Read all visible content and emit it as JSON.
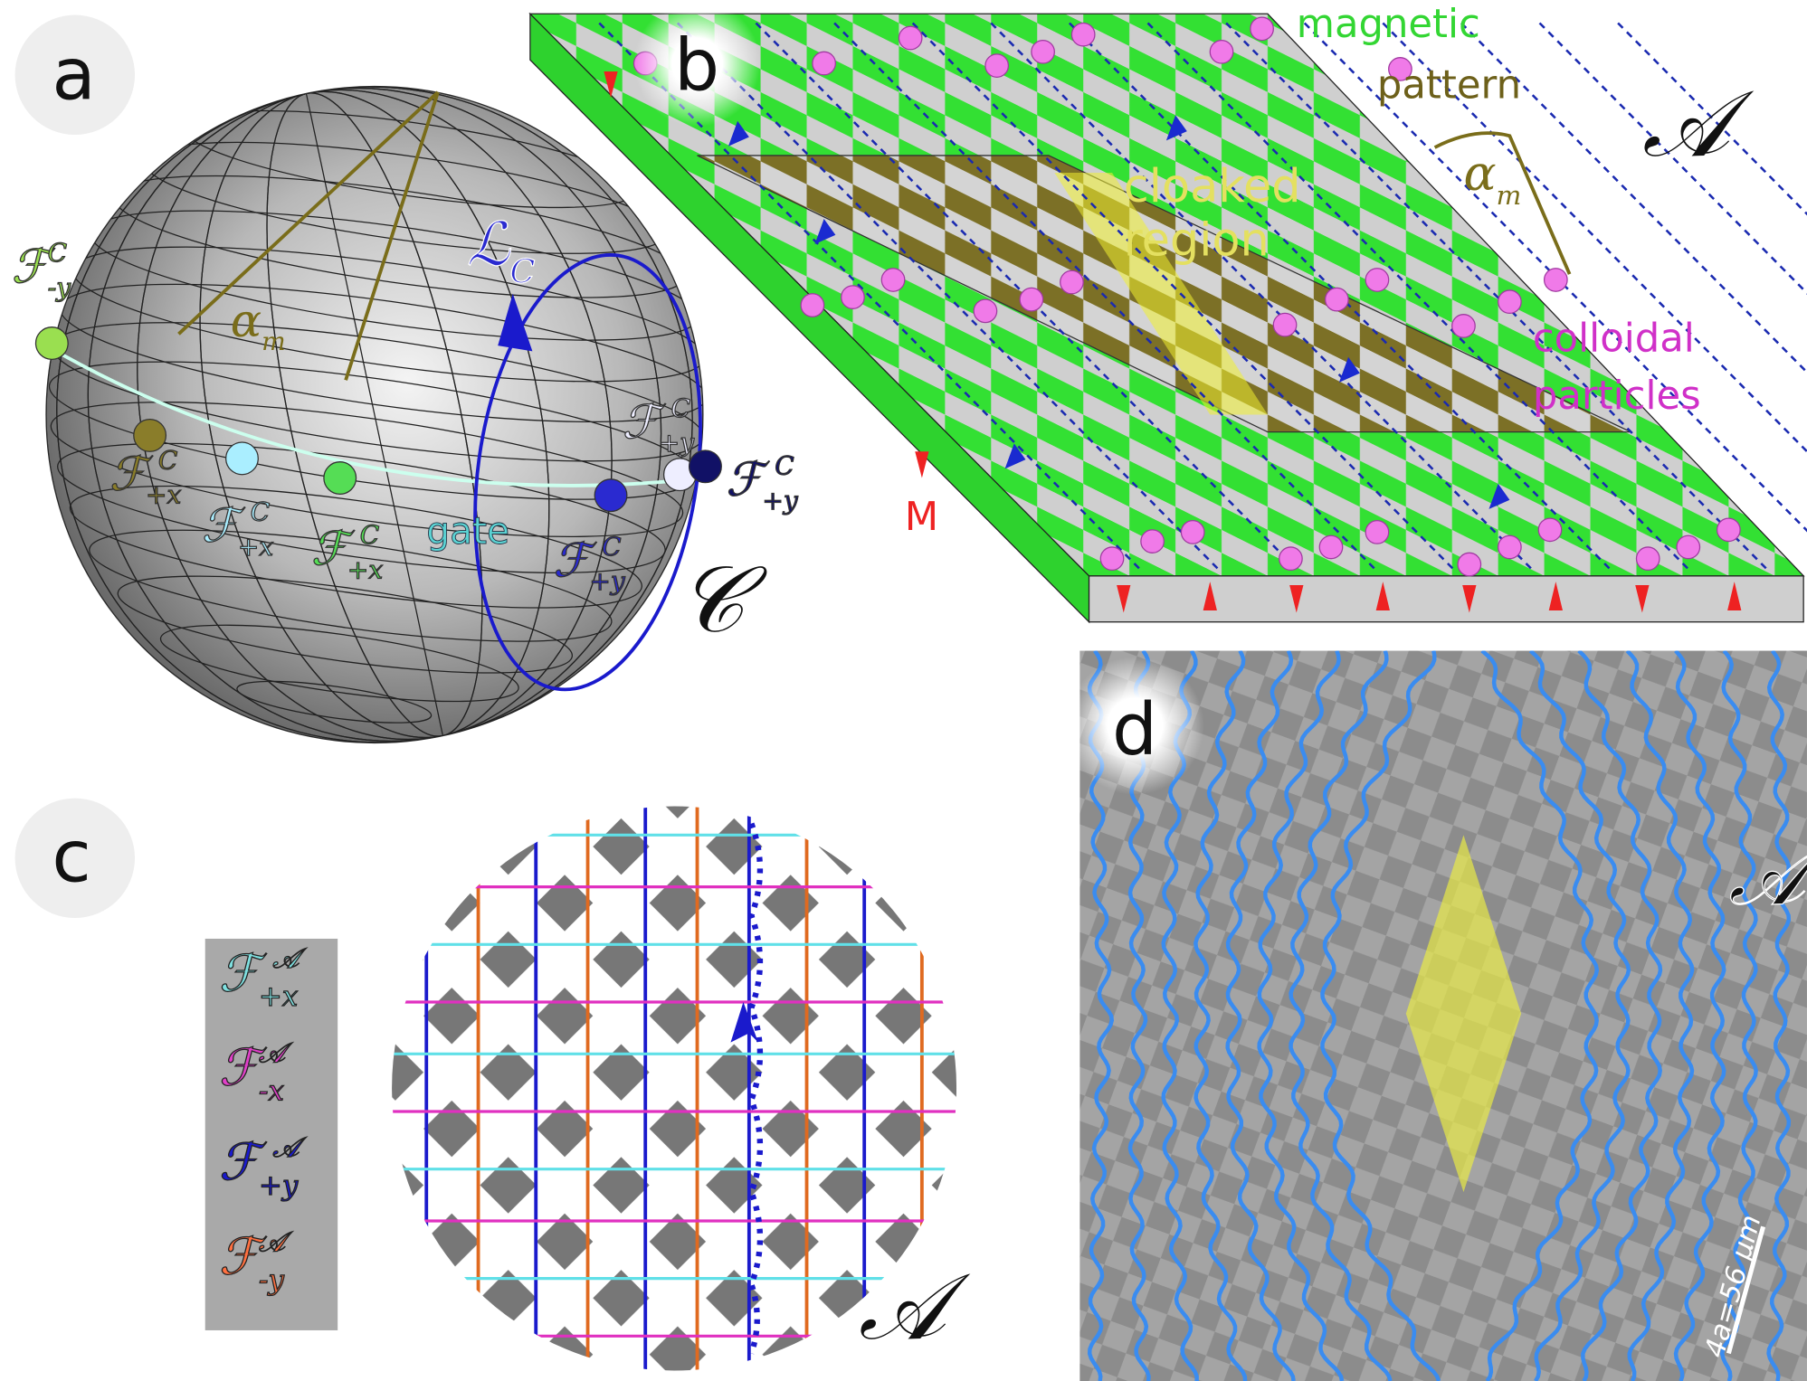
{
  "panel_a": {
    "label": "a",
    "alpha": {
      "symbol": "α",
      "sub": "m"
    },
    "loop": {
      "symbol": "ℒ",
      "sub": "C"
    },
    "space": "𝒞",
    "gate": "gate",
    "fences": [
      {
        "symbol": "ℱ",
        "sub": "-y",
        "sup": "C"
      },
      {
        "symbol": "ℱ",
        "sub": "+x",
        "sup": "C"
      },
      {
        "symbol": "ℱ",
        "sub": "+x",
        "sup": "C"
      },
      {
        "symbol": "ℱ",
        "sub": "+x",
        "sup": "C"
      },
      {
        "symbol": "ℱ",
        "sub": "+y",
        "sup": "C"
      },
      {
        "symbol": "ℱ",
        "sub": "+y",
        "sup": "C"
      },
      {
        "symbol": "ℱ",
        "sub": "+y",
        "sup": "C"
      }
    ]
  },
  "panel_b": {
    "label": "b",
    "magnetic_pattern": [
      "magnetic",
      "pattern"
    ],
    "cloaked_region": [
      "cloaked",
      "region"
    ],
    "colloidal_particles": [
      "colloidal",
      "particles"
    ],
    "magnetization": "M",
    "alpha": {
      "symbol": "α",
      "sub": "m"
    },
    "space": "𝒜"
  },
  "panel_c": {
    "label": "c",
    "legend": [
      {
        "symbol": "ℱ",
        "sub": "+x",
        "sup": "𝒜"
      },
      {
        "symbol": "ℱ",
        "sub": "-x",
        "sup": "𝒜"
      },
      {
        "symbol": "ℱ",
        "sub": "+y",
        "sup": "𝒜"
      },
      {
        "symbol": "ℱ",
        "sub": "-y",
        "sup": "𝒜"
      }
    ],
    "space": "𝒜"
  },
  "panel_d": {
    "label": "d",
    "space": "𝒜",
    "scale_bar": "4a=56 μm"
  }
}
